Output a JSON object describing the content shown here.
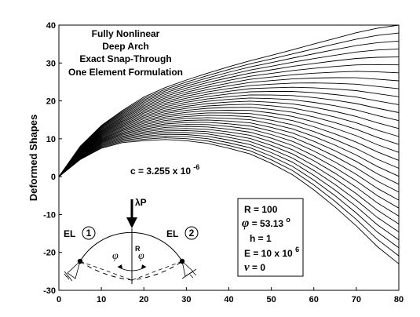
{
  "chart_data": {
    "type": "line",
    "title": "",
    "xlabel": "",
    "ylabel": "Deformed Shapes",
    "xlim": [
      0,
      80
    ],
    "ylim": [
      -30,
      40
    ],
    "x_ticks": [
      "0",
      "10",
      "20",
      "30",
      "40",
      "50",
      "60",
      "70",
      "80"
    ],
    "y_ticks": [
      "40",
      "30",
      "20",
      "10",
      "0",
      "-10",
      "-20",
      "-30"
    ],
    "grid": false,
    "legend": null,
    "curve_family": {
      "count": 31,
      "x": [
        0,
        5,
        10,
        15,
        20,
        25,
        30,
        35,
        40,
        45,
        50,
        55,
        60,
        65,
        70,
        75,
        80
      ],
      "first_y": [
        0,
        8,
        13.5,
        17.5,
        21,
        23.5,
        25.5,
        27.3,
        29,
        30.6,
        32,
        33.5,
        35,
        36.5,
        38,
        39.2,
        40
      ],
      "last_y": [
        0,
        4.5,
        7.5,
        9,
        9.5,
        9.8,
        9.5,
        8.8,
        7.5,
        6,
        3.5,
        0.5,
        -3.5,
        -8,
        -13,
        -18.5,
        -23
      ]
    },
    "annotations": {
      "title_lines": [
        "Fully Nonlinear",
        "Deep Arch",
        "Exact Snap-Through",
        "One Element Formulation"
      ],
      "c_label": "c = 3.255 x 10",
      "c_exp": "-6",
      "load_label": "λP",
      "element_1": "EL",
      "element_1_num": "1",
      "element_2": "EL",
      "element_2_num": "2",
      "radius_label": "R",
      "angle_label": "φ"
    },
    "properties": {
      "R": "R = 100",
      "phi_sym": "φ",
      "phi": " = 53.13",
      "phi_unit": "o",
      "h": "h = 1",
      "E": "E = 10 x 10",
      "E_exp": "6",
      "nu_sym": "ν",
      "nu": " = 0"
    }
  }
}
